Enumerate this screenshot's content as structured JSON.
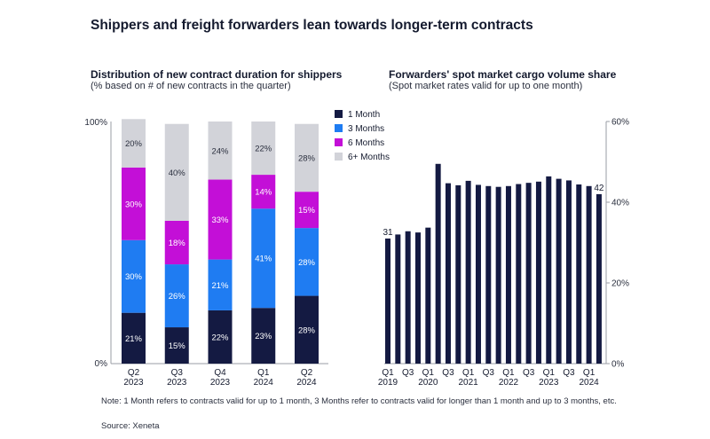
{
  "title": "Shippers and freight forwarders lean towards longer-term contracts",
  "footnote": "Note: 1 Month refers to contracts valid for up to 1 month, 3 Months refer to contracts valid for longer than 1 month and up to 3 months, etc.",
  "source": "Source: Xeneta",
  "chart_data": [
    {
      "type": "bar",
      "stacked": true,
      "title": "Distribution of new contract duration for shippers",
      "subtitle": "(% based on # of new contracts in the quarter)",
      "categories": [
        "Q2 2023",
        "Q3 2023",
        "Q4 2023",
        "Q1 2024",
        "Q2 2024"
      ],
      "category_lines": [
        [
          "Q2",
          "2023"
        ],
        [
          "Q3",
          "2023"
        ],
        [
          "Q4",
          "2023"
        ],
        [
          "Q1",
          "2024"
        ],
        [
          "Q2",
          "2024"
        ]
      ],
      "y_ticks": [
        "0%",
        "100%"
      ],
      "ylim": [
        0,
        100
      ],
      "legend_position": "top-right",
      "series": [
        {
          "name": "1 Month",
          "color": "#141a42",
          "label_color": "#ffffff",
          "values": [
            21,
            15,
            22,
            23,
            28
          ],
          "labels": [
            "21%",
            "15%",
            "22%",
            "23%",
            "28%"
          ]
        },
        {
          "name": "3 Months",
          "color": "#1f7cf2",
          "label_color": "#ffffff",
          "values": [
            30,
            26,
            21,
            41,
            28
          ],
          "labels": [
            "30%",
            "26%",
            "21%",
            "41%",
            "28%"
          ]
        },
        {
          "name": "6 Months",
          "color": "#c30fd7",
          "label_color": "#ffffff",
          "values": [
            30,
            18,
            33,
            14,
            15
          ],
          "labels": [
            "30%",
            "18%",
            "33%",
            "14%",
            "15%"
          ]
        },
        {
          "name": "6+ Months",
          "color": "#d2d3d9",
          "label_color": "#2a2f3e",
          "values": [
            20,
            40,
            24,
            22,
            28
          ],
          "labels": [
            "20%",
            "40%",
            "24%",
            "22%",
            "28%"
          ]
        }
      ]
    },
    {
      "type": "bar",
      "title": "Forwarders' spot market cargo volume share",
      "subtitle": "(Spot market rates valid for up to one month)",
      "ylim": [
        0,
        60
      ],
      "y_ticks": [
        "0%",
        "20%",
        "40%",
        "60%"
      ],
      "y_tick_values": [
        0,
        20,
        40,
        60
      ],
      "color": "#141a42",
      "values": [
        31,
        32,
        32.8,
        32.5,
        33.7,
        49.5,
        44.7,
        44.2,
        45.3,
        44.3,
        44,
        43.8,
        44,
        44.5,
        44.8,
        45.1,
        46.4,
        45.8,
        45.4,
        44.4,
        44,
        42
      ],
      "value_labels": [
        {
          "index": 0,
          "text": "31"
        },
        {
          "index": 21,
          "text": "42"
        }
      ],
      "x_ticks": [
        {
          "label": "Q1",
          "year": "2019"
        },
        {
          "label": "Q3",
          "year": ""
        },
        {
          "label": "Q1",
          "year": "2020"
        },
        {
          "label": "Q3",
          "year": ""
        },
        {
          "label": "Q1",
          "year": "2021"
        },
        {
          "label": "Q3",
          "year": ""
        },
        {
          "label": "Q1",
          "year": "2022"
        },
        {
          "label": "Q3",
          "year": ""
        },
        {
          "label": "Q1",
          "year": "2023"
        },
        {
          "label": "Q3",
          "year": ""
        },
        {
          "label": "Q1",
          "year": "2024"
        }
      ]
    }
  ]
}
